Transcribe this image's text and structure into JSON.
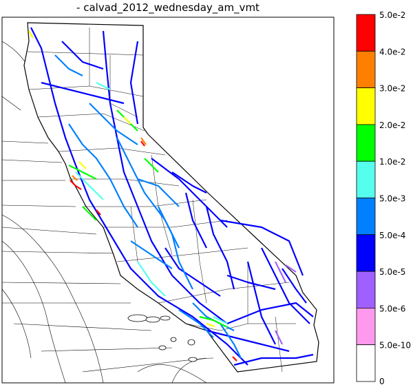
{
  "title": "- calvad_2012_wednesday_am_vmt",
  "colors": {
    "state_fill": "#ffffff",
    "boundary": "#000000",
    "coast": "#333333"
  },
  "legend": {
    "bins": [
      {
        "label": "5.0e-2",
        "color": "#ff0000"
      },
      {
        "label": "4.0e-2",
        "color": "#ff7f00"
      },
      {
        "label": "3.0e-2",
        "color": "#ffff00"
      },
      {
        "label": "2.0e-2",
        "color": "#00ff00"
      },
      {
        "label": "1.0e-2",
        "color": "#55ffee"
      },
      {
        "label": "5.0e-3",
        "color": "#0080ff"
      },
      {
        "label": "5.0e-4",
        "color": "#0000ff"
      },
      {
        "label": "5.0e-5",
        "color": "#a060ff"
      },
      {
        "label": "5.0e-6",
        "color": "#ff99ee"
      },
      {
        "label": "5.0e-10",
        "color": "#ffffff"
      }
    ],
    "bottom_label": "0"
  },
  "roads": [
    {
      "level": "5.0e-4",
      "color": "#0000ff"
    },
    {
      "level": "5.0e-3",
      "color": "#0080ff"
    },
    {
      "level": "1.0e-2",
      "color": "#55ffee"
    },
    {
      "level": "2.0e-2",
      "color": "#00ff00"
    },
    {
      "level": "3.0e-2",
      "color": "#ffff00"
    },
    {
      "level": "4.0e-2",
      "color": "#ff7f00"
    },
    {
      "level": "5.0e-2",
      "color": "#ff0000"
    },
    {
      "level": "5.0e-5",
      "color": "#a060ff"
    }
  ]
}
